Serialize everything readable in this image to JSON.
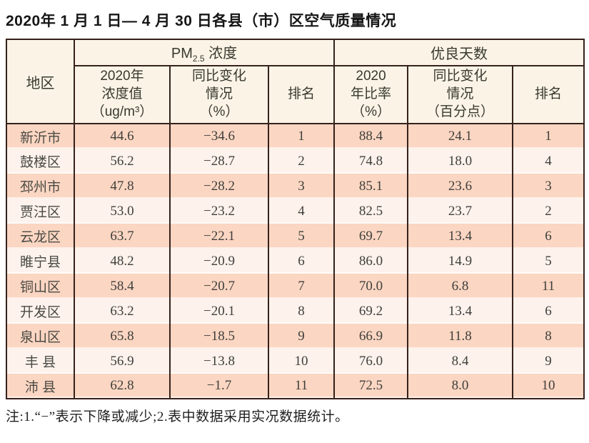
{
  "page": {
    "title": "2020年 1 月 1 日— 4 月 30 日各县（市）区空气质量情况",
    "note": "注:1.“−”表示下降或减少;2.表中数据采用实况数据统计。"
  },
  "table": {
    "region_header": "地区",
    "group_headers": {
      "pm_prefix": "PM",
      "pm_sub": "2.5",
      "pm_suffix": " 浓度",
      "good_days": "优良天数"
    },
    "sub_headers": {
      "pm_value": "2020年\n浓度值\n（ug/m³）",
      "pm_change": "同比变化\n情况\n（%）",
      "pm_rank": "排名",
      "good_rate": "2020\n年比率\n（%）",
      "good_change": "同比变化\n情况\n（百分点）",
      "good_rank": "排名"
    },
    "rows": [
      {
        "region": "新沂市",
        "pm_value": "44.6",
        "pm_change": "−34.6",
        "pm_rank": "1",
        "good_rate": "88.4",
        "good_change": "24.1",
        "good_rank": "1"
      },
      {
        "region": "鼓楼区",
        "pm_value": "56.2",
        "pm_change": "−28.7",
        "pm_rank": "2",
        "good_rate": "74.8",
        "good_change": "18.0",
        "good_rank": "4"
      },
      {
        "region": "邳州市",
        "pm_value": "47.8",
        "pm_change": "−28.2",
        "pm_rank": "3",
        "good_rate": "85.1",
        "good_change": "23.6",
        "good_rank": "3"
      },
      {
        "region": "贾汪区",
        "pm_value": "53.0",
        "pm_change": "−23.2",
        "pm_rank": "4",
        "good_rate": "82.5",
        "good_change": "23.7",
        "good_rank": "2"
      },
      {
        "region": "云龙区",
        "pm_value": "63.7",
        "pm_change": "−22.1",
        "pm_rank": "5",
        "good_rate": "69.7",
        "good_change": "13.4",
        "good_rank": "6"
      },
      {
        "region": "睢宁县",
        "pm_value": "48.2",
        "pm_change": "−20.9",
        "pm_rank": "6",
        "good_rate": "86.0",
        "good_change": "14.9",
        "good_rank": "5"
      },
      {
        "region": "铜山区",
        "pm_value": "58.4",
        "pm_change": "−20.7",
        "pm_rank": "7",
        "good_rate": "70.0",
        "good_change": "6.8",
        "good_rank": "11"
      },
      {
        "region": "开发区",
        "pm_value": "63.2",
        "pm_change": "−20.1",
        "pm_rank": "8",
        "good_rate": "69.2",
        "good_change": "13.4",
        "good_rank": "6"
      },
      {
        "region": "泉山区",
        "pm_value": "65.8",
        "pm_change": "−18.5",
        "pm_rank": "9",
        "good_rate": "66.9",
        "good_change": "11.8",
        "good_rank": "8"
      },
      {
        "region": "丰 县",
        "pm_value": "56.9",
        "pm_change": "−13.8",
        "pm_rank": "10",
        "good_rate": "76.0",
        "good_change": "8.4",
        "good_rank": "9"
      },
      {
        "region": "沛 县",
        "pm_value": "62.8",
        "pm_change": "−1.7",
        "pm_rank": "11",
        "good_rate": "72.5",
        "good_change": "8.0",
        "good_rank": "10"
      }
    ]
  },
  "colors": {
    "row_odd": "#fbd6c2",
    "row_even": "#fdf2ec",
    "header_bg": "#fbf4e6",
    "border": "#36211b"
  }
}
